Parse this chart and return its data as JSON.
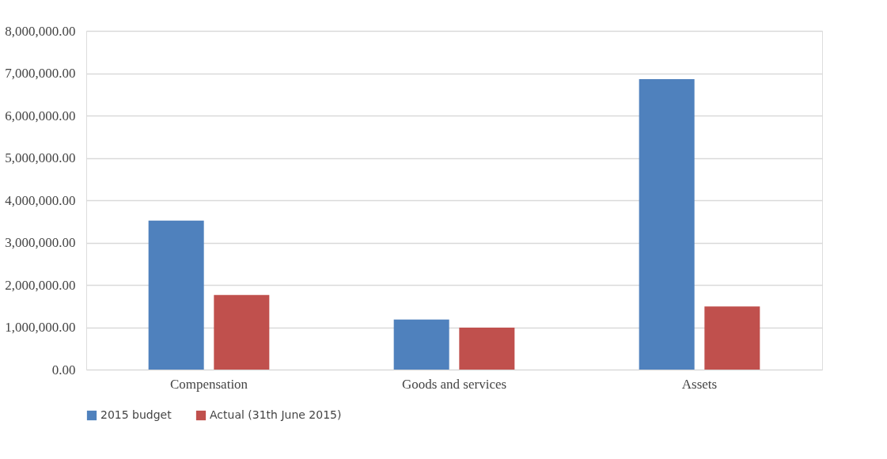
{
  "chart_data": {
    "type": "bar",
    "categories": [
      "Compensation",
      "Goods and services",
      "Assets"
    ],
    "series": [
      {
        "name": "2015 budget",
        "color": "#4f81bd",
        "values": [
          3520000,
          1180000,
          6860000
        ]
      },
      {
        "name": "Actual  (31th June 2015)",
        "color": "#c0504d",
        "values": [
          1760000,
          990000,
          1490000
        ]
      }
    ],
    "ylim": [
      0,
      8000000
    ],
    "yticks": [
      {
        "value": 0,
        "label": "0.00"
      },
      {
        "value": 1000000,
        "label": "1,000,000.00"
      },
      {
        "value": 2000000,
        "label": "2,000,000.00"
      },
      {
        "value": 3000000,
        "label": "3,000,000.00"
      },
      {
        "value": 4000000,
        "label": "4,000,000.00"
      },
      {
        "value": 5000000,
        "label": "5,000,000.00"
      },
      {
        "value": 6000000,
        "label": "6,000,000.00"
      },
      {
        "value": 7000000,
        "label": "7,000,000.00"
      },
      {
        "value": 8000000,
        "label": "8,000,000.00"
      }
    ],
    "grid": "y",
    "legend": "bottom"
  }
}
